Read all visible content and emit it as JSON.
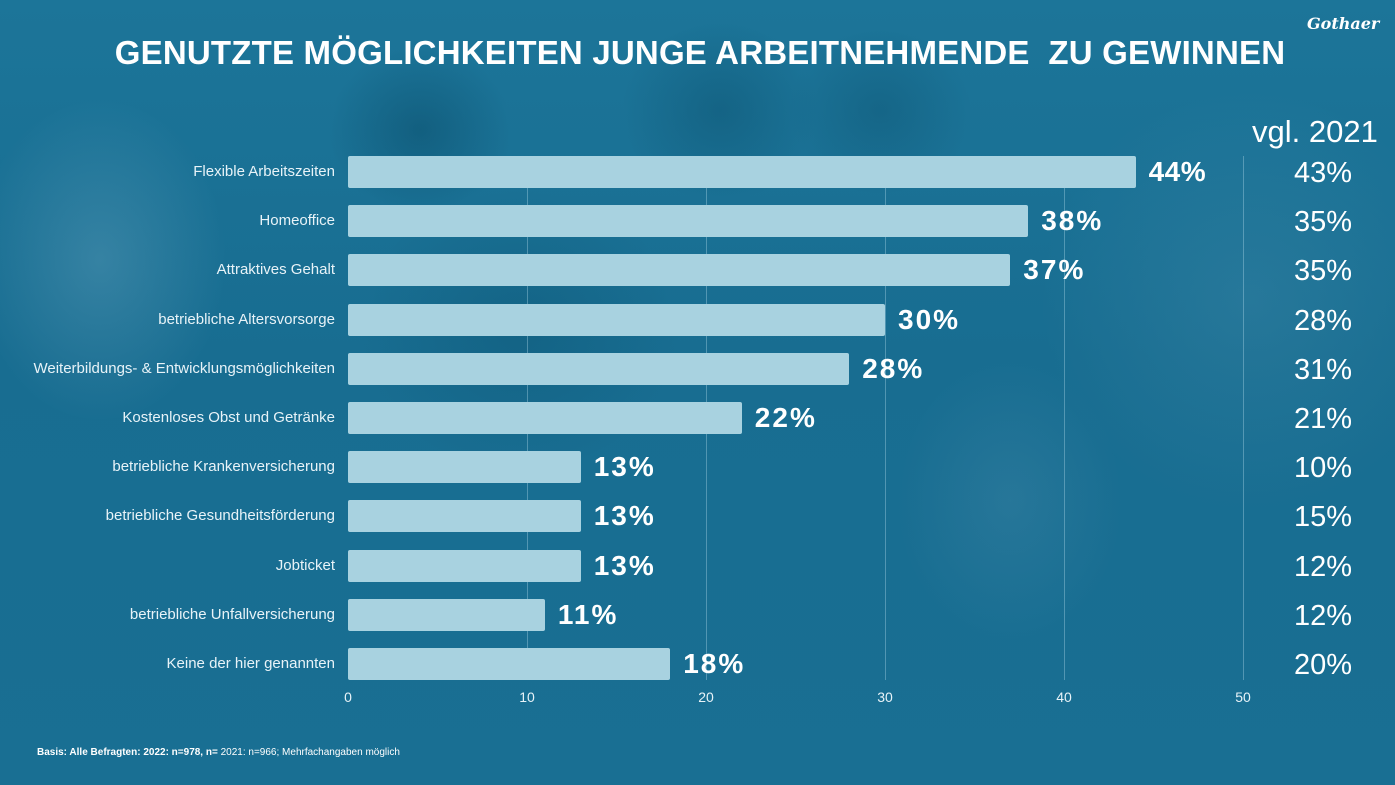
{
  "header": {
    "title": "GENUTZTE MÖGLICHKEITEN JUNGE ARBEITNEHMENDE  ZU GEWINNEN",
    "logo_text": "Gothaer",
    "comparison_header": "vgl. 2021"
  },
  "chart_data": {
    "type": "bar",
    "orientation": "horizontal",
    "title": "GENUTZTE MÖGLICHKEITEN JUNGE ARBEITNEHMENDE  ZU GEWINNEN",
    "xlabel": "",
    "ylabel": "",
    "xlim": [
      0,
      50
    ],
    "grid": true,
    "x_ticks": [
      "0",
      "10",
      "20",
      "30",
      "40",
      "50"
    ],
    "x_tick_values": [
      0,
      10,
      20,
      30,
      40,
      50
    ],
    "categories": [
      "Flexible Arbeitszeiten",
      "Homeoffice",
      "Attraktives Gehalt",
      "betriebliche Altersvorsorge",
      "Weiterbildungs- & Entwicklungsmöglichkeiten",
      "Kostenloses Obst und Getränke",
      "betriebliche Krankenversicherung",
      "betriebliche Gesundheitsförderung",
      "Jobticket",
      "betriebliche Unfallversicherung",
      "Keine der hier genannten"
    ],
    "series": [
      {
        "name": "2022",
        "values": [
          44,
          38,
          37,
          30,
          28,
          22,
          13,
          13,
          13,
          11,
          18
        ],
        "labels": [
          "44%",
          "38%",
          "37%",
          "30%",
          "28%",
          "22%",
          "13%",
          "13%",
          "13%",
          "11%",
          "18%"
        ],
        "color": "#a8d2e0"
      },
      {
        "name": "vgl. 2021",
        "values": [
          43,
          35,
          35,
          28,
          31,
          21,
          10,
          15,
          12,
          12,
          20
        ],
        "labels": [
          "43%",
          "35%",
          "35%",
          "28%",
          "31%",
          "21%",
          "10%",
          "15%",
          "12%",
          "12%",
          "20%"
        ]
      }
    ]
  },
  "footnote": {
    "bold_part": "Basis: Alle Befragten: 2022: n=978, n=",
    "regular_part": " 2021: n=966; Mehrfachangaben möglich"
  },
  "colors": {
    "background": "#1a6f93",
    "bar": "#a8d2e0",
    "text": "#ffffff"
  }
}
